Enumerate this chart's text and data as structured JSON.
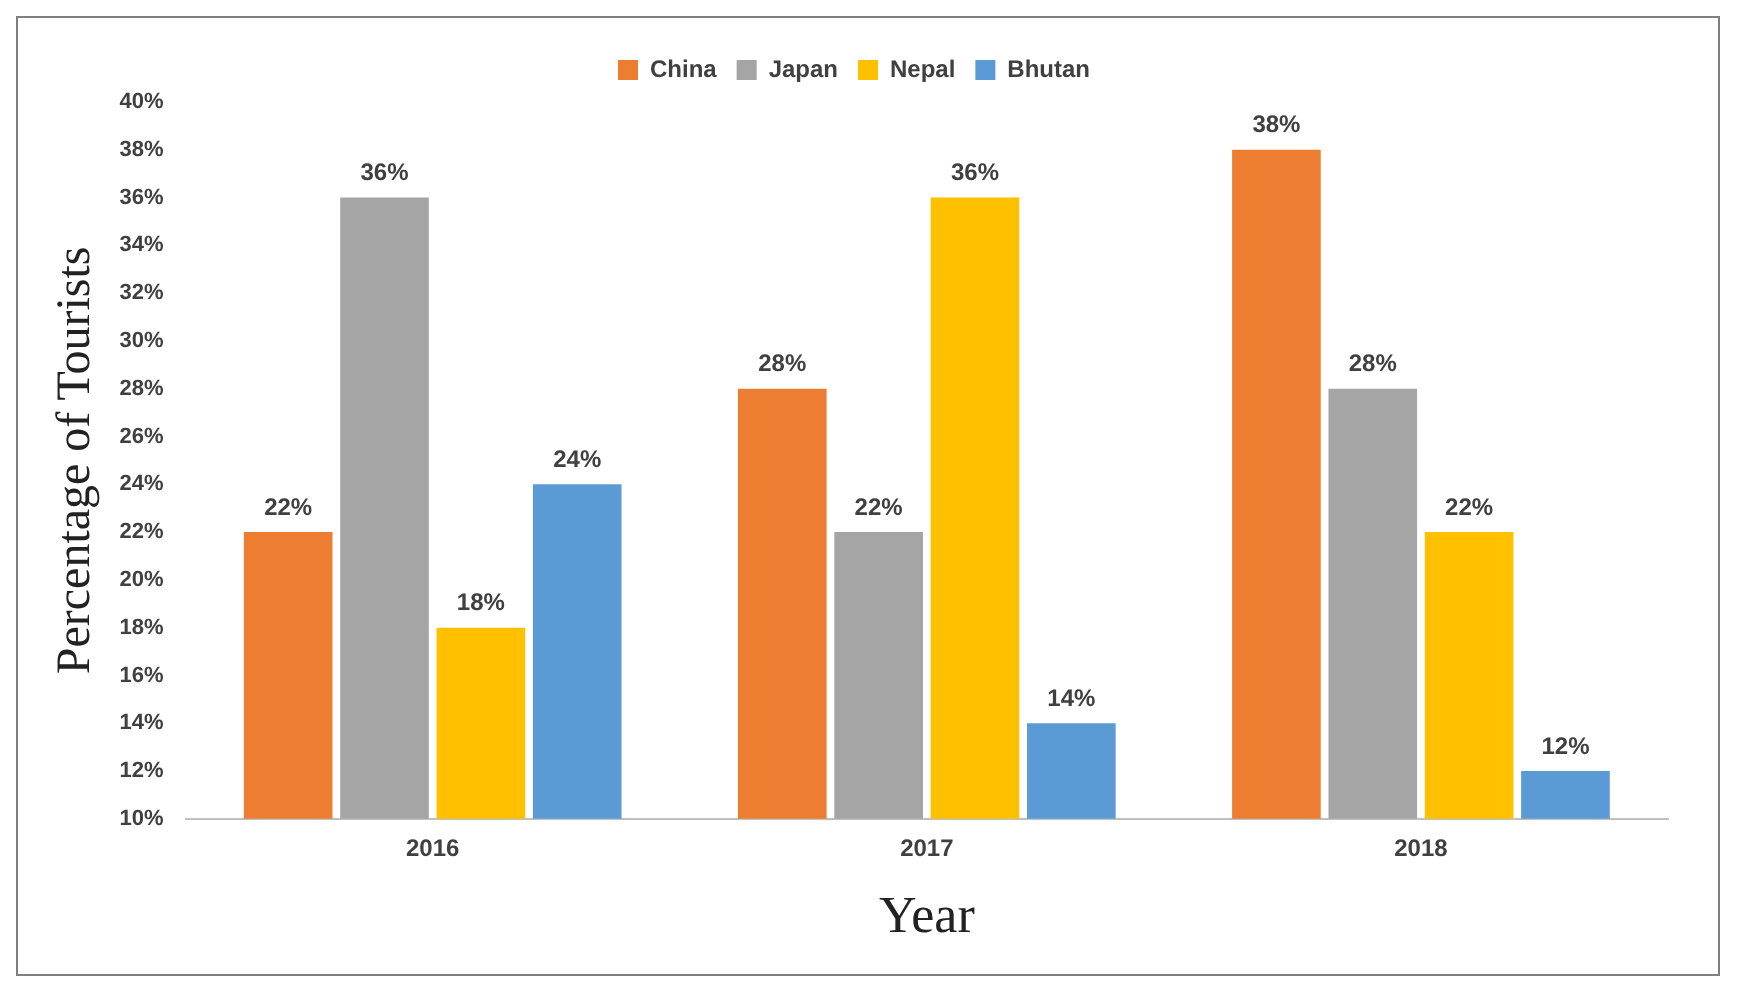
{
  "chart_data": {
    "type": "bar",
    "xlabel": "Year",
    "ylabel": "Percentage of Tourists",
    "categories": [
      "2016",
      "2017",
      "2018"
    ],
    "series": [
      {
        "name": "China",
        "color": "#ed7d31",
        "values": [
          22,
          28,
          38
        ],
        "value_labels": [
          "22%",
          "28%",
          "38%"
        ]
      },
      {
        "name": "Japan",
        "color": "#a5a5a5",
        "values": [
          36,
          22,
          28
        ],
        "value_labels": [
          "36%",
          "22%",
          "28%"
        ]
      },
      {
        "name": "Nepal",
        "color": "#ffc000",
        "values": [
          18,
          36,
          22
        ],
        "value_labels": [
          "18%",
          "36%",
          "22%"
        ]
      },
      {
        "name": "Bhutan",
        "color": "#5b9bd5",
        "values": [
          24,
          14,
          12
        ],
        "value_labels": [
          "24%",
          "14%",
          "12%"
        ]
      }
    ],
    "ylim": [
      10,
      40
    ],
    "yticks": [
      {
        "value": 10,
        "label": "10%"
      },
      {
        "value": 12,
        "label": "12%"
      },
      {
        "value": 14,
        "label": "14%"
      },
      {
        "value": 16,
        "label": "16%"
      },
      {
        "value": 18,
        "label": "18%"
      },
      {
        "value": 20,
        "label": "20%"
      },
      {
        "value": 22,
        "label": "22%"
      },
      {
        "value": 24,
        "label": "24%"
      },
      {
        "value": 26,
        "label": "26%"
      },
      {
        "value": 28,
        "label": "28%"
      },
      {
        "value": 30,
        "label": "30%"
      },
      {
        "value": 32,
        "label": "32%"
      },
      {
        "value": 34,
        "label": "34%"
      },
      {
        "value": 36,
        "label": "36%"
      },
      {
        "value": 38,
        "label": "38%"
      },
      {
        "value": 40,
        "label": "40%"
      }
    ],
    "grid": false,
    "legend": "top"
  }
}
